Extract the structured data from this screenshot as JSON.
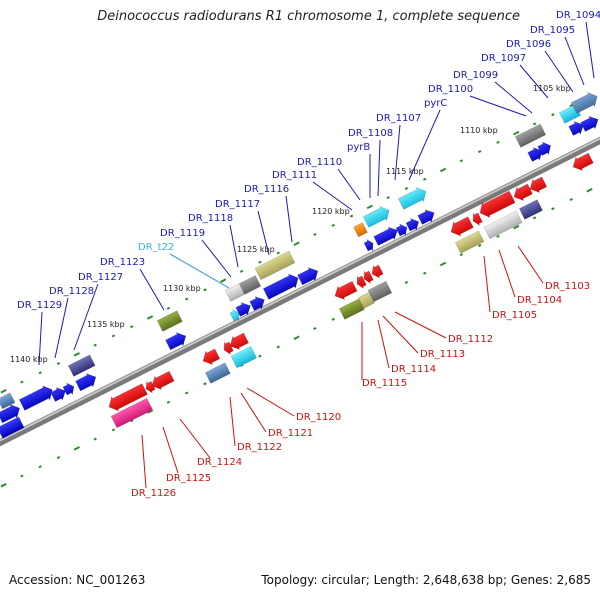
{
  "title": "Deinococcus radiodurans R1 chromosome 1, complete sequence",
  "footer": {
    "accession": "Accession: NC_001263",
    "summary": "Topology: circular; Length: 2,648,638 bp; Genes: 2,685"
  },
  "colors": {
    "plus_label": "#1a1ab8",
    "minus_label": "#cc1111",
    "trna_label": "#3fb5d8",
    "backbone": "#8a8a8a",
    "tick": "#2e8b2e"
  },
  "kbp_marks": [
    "1105 kbp",
    "1110 kbp",
    "1115 kbp",
    "1120 kbp",
    "1125 kbp",
    "1130 kbp",
    "1135 kbp",
    "1140 kbp"
  ],
  "plus_labels": [
    "DR_1094",
    "DR_1095",
    "DR_1096",
    "DR_1097",
    "DR_1099",
    "DR_1100",
    "pyrC",
    "DR_1107",
    "DR_1108",
    "pyrB",
    "DR_1110",
    "DR_1111",
    "DR_1116",
    "DR_1117",
    "DR_1118",
    "DR_1119",
    "DR_t22",
    "DR_1123",
    "DR_1127",
    "DR_1128",
    "DR_1129"
  ],
  "minus_labels": [
    "DR_1103",
    "DR_1104",
    "DR_1105",
    "DR_1112",
    "DR_1113",
    "DR_1114",
    "DR_1115",
    "DR_1120",
    "DR_1121",
    "DR_1122",
    "DR_1124",
    "DR_1125",
    "DR_1126"
  ]
}
